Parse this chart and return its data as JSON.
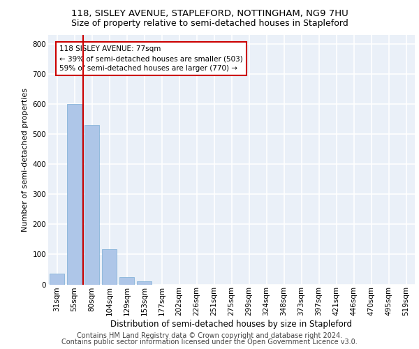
{
  "title1": "118, SISLEY AVENUE, STAPLEFORD, NOTTINGHAM, NG9 7HU",
  "title2": "Size of property relative to semi-detached houses in Stapleford",
  "xlabel": "Distribution of semi-detached houses by size in Stapleford",
  "ylabel": "Number of semi-detached properties",
  "footer1": "Contains HM Land Registry data © Crown copyright and database right 2024.",
  "footer2": "Contains public sector information licensed under the Open Government Licence v3.0.",
  "categories": [
    "31sqm",
    "55sqm",
    "80sqm",
    "104sqm",
    "129sqm",
    "153sqm",
    "177sqm",
    "202sqm",
    "226sqm",
    "251sqm",
    "275sqm",
    "299sqm",
    "324sqm",
    "348sqm",
    "373sqm",
    "397sqm",
    "421sqm",
    "446sqm",
    "470sqm",
    "495sqm",
    "519sqm"
  ],
  "values": [
    35,
    600,
    530,
    118,
    25,
    10,
    0,
    0,
    0,
    0,
    0,
    0,
    0,
    0,
    0,
    0,
    0,
    0,
    0,
    0,
    0
  ],
  "bar_color": "#aec6e8",
  "bar_edge_color": "#7aadd4",
  "vline_color": "#cc0000",
  "vline_bin": 2,
  "annotation_text": "118 SISLEY AVENUE: 77sqm\n← 39% of semi-detached houses are smaller (503)\n59% of semi-detached houses are larger (770) →",
  "annotation_box_color": "#ffffff",
  "annotation_box_edge": "#cc0000",
  "ylim": [
    0,
    830
  ],
  "yticks": [
    0,
    100,
    200,
    300,
    400,
    500,
    600,
    700,
    800
  ],
  "background_color": "#eaf0f8",
  "grid_color": "#ffffff",
  "title1_fontsize": 9.5,
  "title2_fontsize": 9,
  "xlabel_fontsize": 8.5,
  "ylabel_fontsize": 8,
  "tick_fontsize": 7.5,
  "footer_fontsize": 7
}
